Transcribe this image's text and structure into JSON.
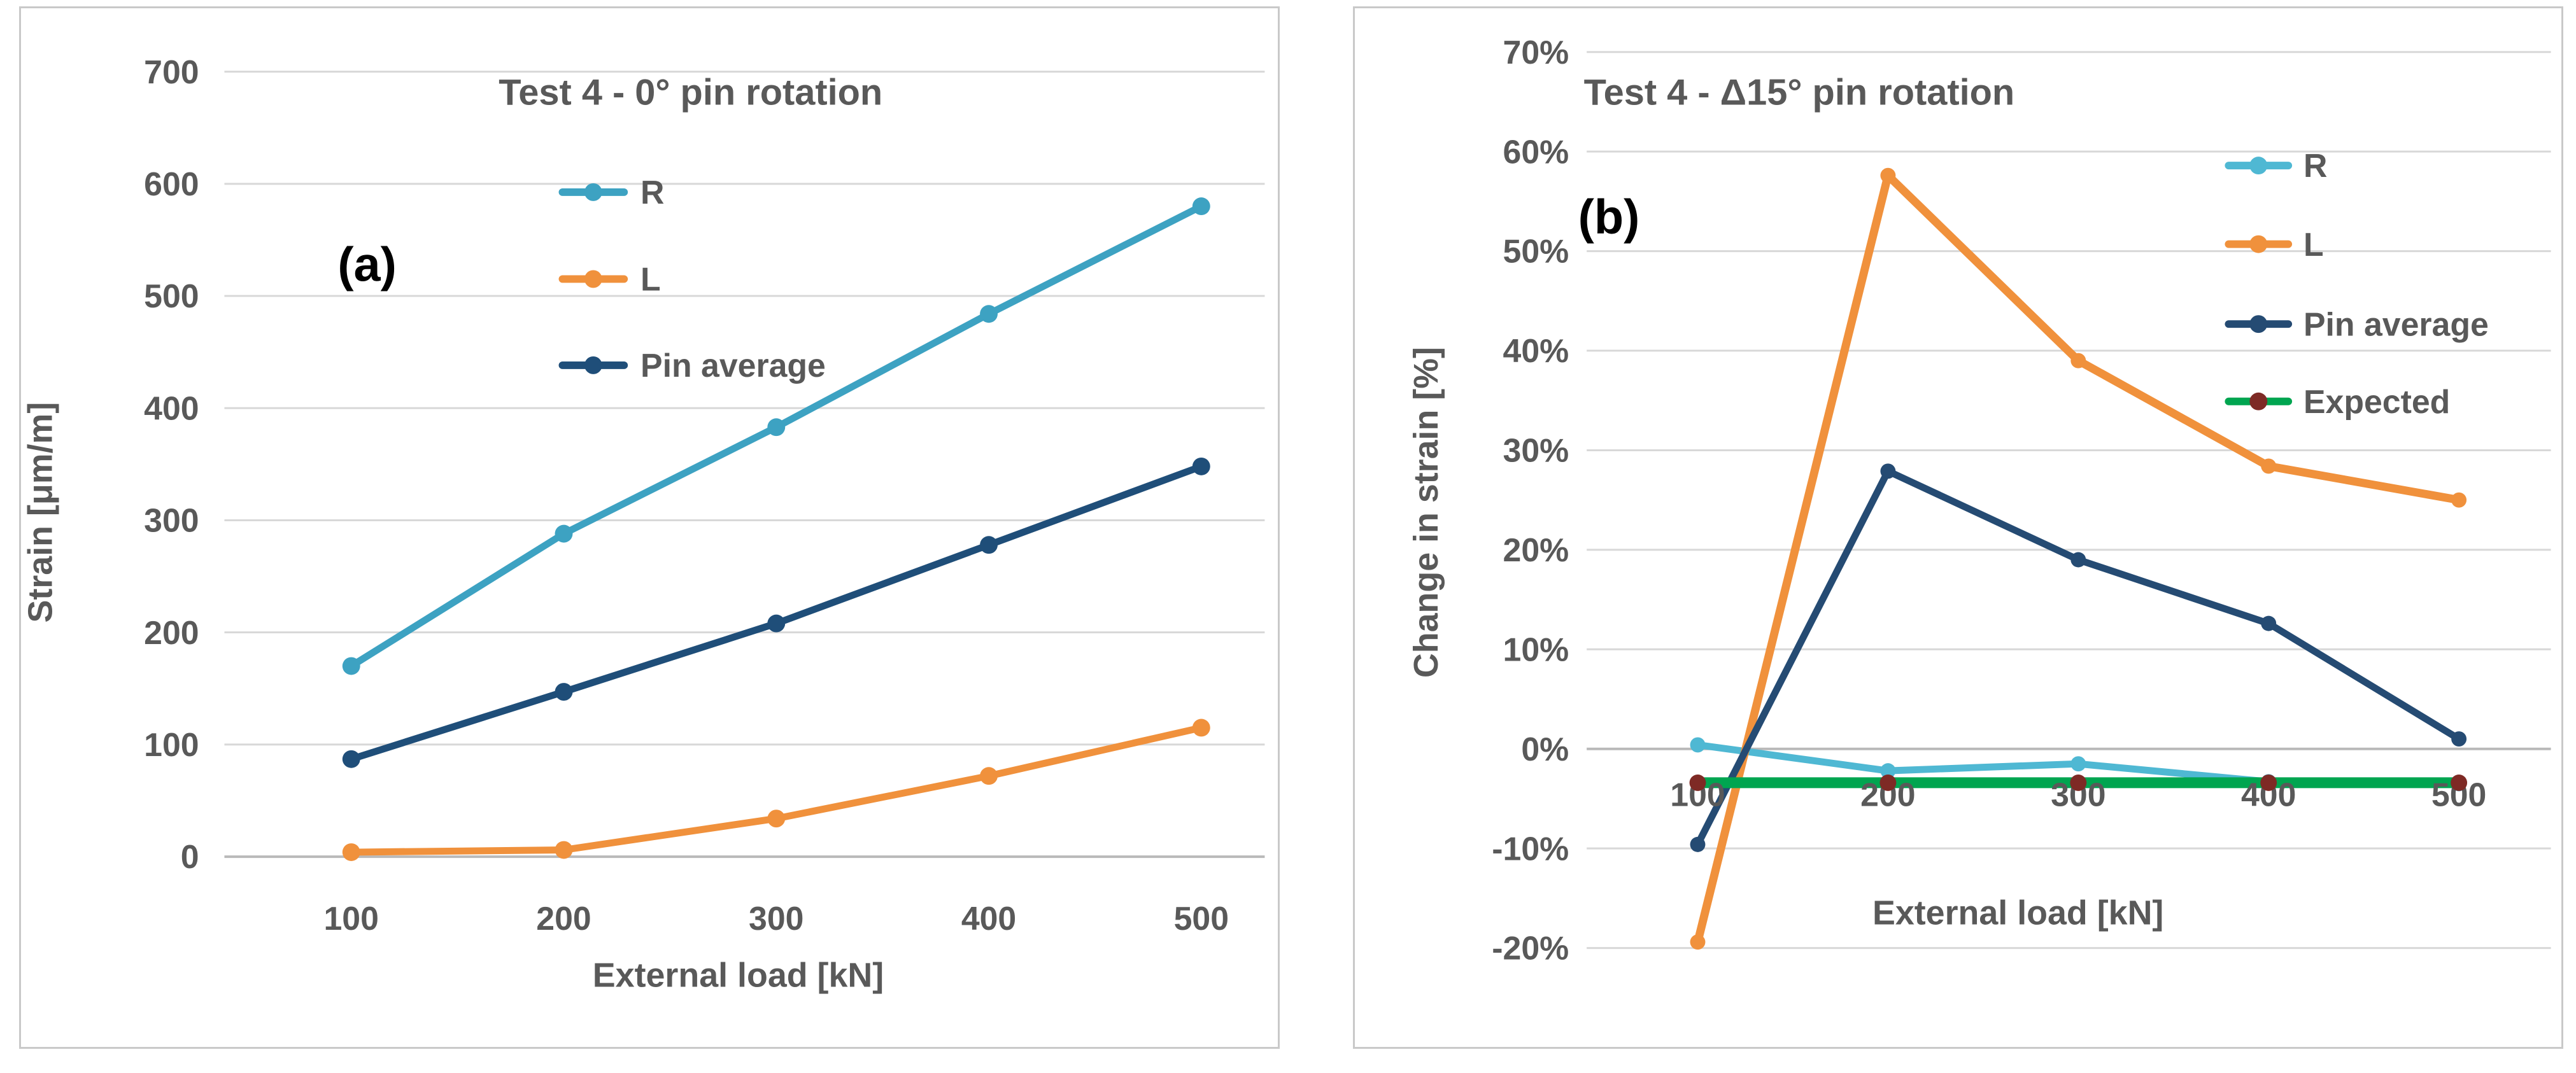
{
  "page": {
    "background": "#ffffff",
    "panel_border_color": "#c9c9c9",
    "grid_color": "#d8d8d8",
    "axis_line_color": "#b9b9b9",
    "axis_text_color": "#595959",
    "panel_label_color": "#000000"
  },
  "chart_data": [
    {
      "type": "line",
      "panel_label": "(a)",
      "title": "Test 4 - 0° pin rotation",
      "xlabel": "External load [kN]",
      "ylabel": "Strain [μm/m]",
      "categories": [
        100,
        200,
        300,
        400,
        500
      ],
      "xtick_labels": [
        "100",
        "200",
        "300",
        "400",
        "500"
      ],
      "ylim": [
        0,
        700
      ],
      "ytick_step": 100,
      "ytick_labels": [
        "0",
        "100",
        "200",
        "300",
        "400",
        "500",
        "600",
        "700"
      ],
      "grid": true,
      "legend_position": "inside top-center vertical",
      "legend_entries": [
        "R",
        "L",
        "Pin average"
      ],
      "series": [
        {
          "name": "R",
          "color": "#3da2c2",
          "marker": "circle",
          "values": [
            170,
            288,
            383,
            484,
            580
          ]
        },
        {
          "name": "L",
          "color": "#f0913c",
          "marker": "circle",
          "values": [
            4,
            6,
            34,
            72,
            115
          ]
        },
        {
          "name": "Pin average",
          "color": "#1f4e79",
          "marker": "circle",
          "values": [
            87,
            147,
            208,
            278,
            348
          ]
        }
      ]
    },
    {
      "type": "line",
      "panel_label": "(b)",
      "title": "Test 4 - Δ15° pin rotation",
      "xlabel": "External load [kN]",
      "ylabel": "Change in strain [%]",
      "categories": [
        100,
        200,
        300,
        400,
        500
      ],
      "xtick_labels": [
        "100",
        "200",
        "300",
        "400",
        "500"
      ],
      "ylim": [
        -20,
        70
      ],
      "ytick_step": 10,
      "ytick_labels": [
        "-20%",
        "-10%",
        "0%",
        "10%",
        "20%",
        "30%",
        "40%",
        "50%",
        "60%",
        "70%"
      ],
      "grid": true,
      "legend_position": "inside right vertical",
      "legend_entries": [
        "R",
        "L",
        "Pin average",
        "Expected"
      ],
      "series": [
        {
          "name": "R",
          "color": "#4fb8d3",
          "marker": "circle",
          "values": [
            0.4,
            -2.2,
            -1.5,
            -3.3,
            -3.5
          ]
        },
        {
          "name": "L",
          "color": "#f0913c",
          "marker": "circle",
          "values": [
            -19.4,
            57.6,
            39.0,
            28.4,
            25.0
          ]
        },
        {
          "name": "Pin average",
          "color": "#254b73",
          "marker": "circle",
          "values": [
            -9.6,
            27.9,
            19.0,
            12.6,
            1.0
          ]
        },
        {
          "name": "Expected",
          "color": "#00a550",
          "marker": "circle",
          "marker_color": "#7e2a25",
          "values": [
            -3.4,
            -3.4,
            -3.4,
            -3.4,
            -3.4
          ]
        }
      ]
    }
  ]
}
